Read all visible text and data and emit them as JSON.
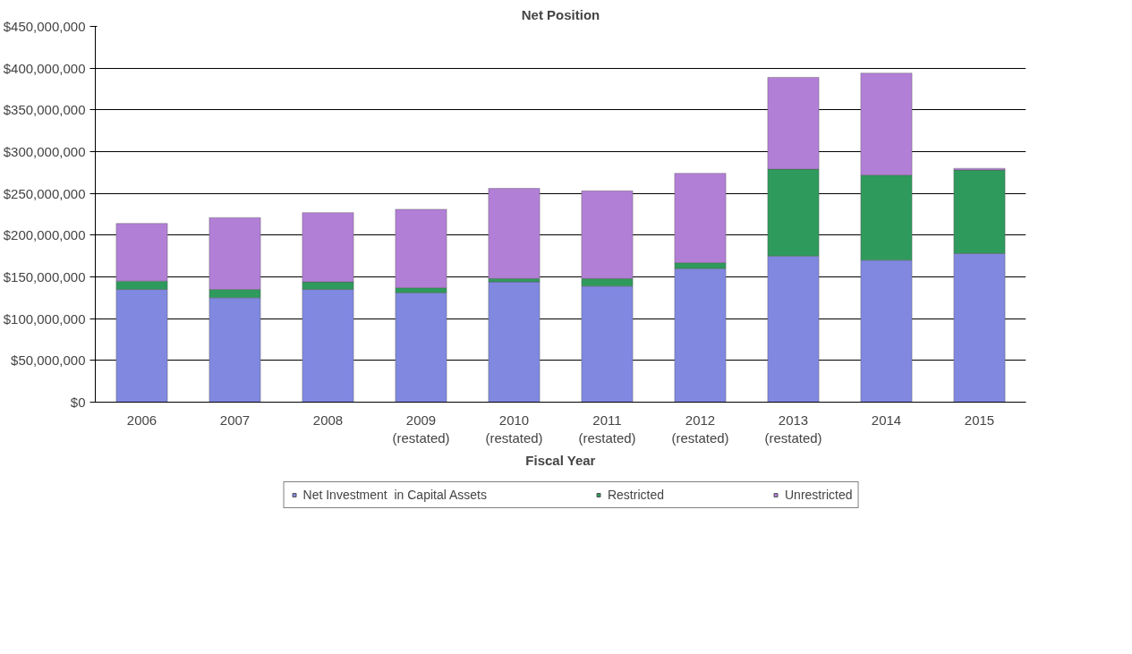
{
  "chart_data": {
    "type": "bar",
    "title": "Net Position",
    "xlabel": "Fiscal Year",
    "stacked": true,
    "grid": "y",
    "legend": "bottom",
    "categories": [
      "2006",
      "2007",
      "2008",
      "2009\n(restated)",
      "2010\n(restated)",
      "2011\n(restated)",
      "2012\n(restated)",
      "2013\n(restated)",
      "2014",
      "2015"
    ],
    "series": [
      {
        "name": "Net Investment  in Capital Assets",
        "color": "#8088e0",
        "values": [
          135000000,
          125000000,
          135000000,
          131000000,
          144000000,
          139000000,
          160000000,
          175000000,
          170000000,
          178000000
        ]
      },
      {
        "name": "Restricted",
        "color": "#2e9a5c",
        "values": [
          10000000,
          10000000,
          9000000,
          6000000,
          4000000,
          9000000,
          7000000,
          104000000,
          102000000,
          100000000
        ]
      },
      {
        "name": "Unrestricted",
        "color": "#b27fd6",
        "values": [
          69000000,
          86000000,
          83000000,
          94000000,
          108000000,
          105000000,
          107000000,
          110000000,
          122000000,
          2000000
        ]
      }
    ],
    "ylim": [
      0,
      450000000
    ],
    "yticks": [
      {
        "value": 0,
        "label": "$0"
      },
      {
        "value": 50000000,
        "label": "$50,000,000"
      },
      {
        "value": 100000000,
        "label": "$100,000,000"
      },
      {
        "value": 150000000,
        "label": "$150,000,000"
      },
      {
        "value": 200000000,
        "label": "$200,000,000"
      },
      {
        "value": 250000000,
        "label": "$250,000,000"
      },
      {
        "value": 300000000,
        "label": "$300,000,000"
      },
      {
        "value": 350000000,
        "label": "$350,000,000"
      },
      {
        "value": 400000000,
        "label": "$400,000,000"
      },
      {
        "value": 450000000,
        "label": "$450,000,000"
      }
    ]
  }
}
